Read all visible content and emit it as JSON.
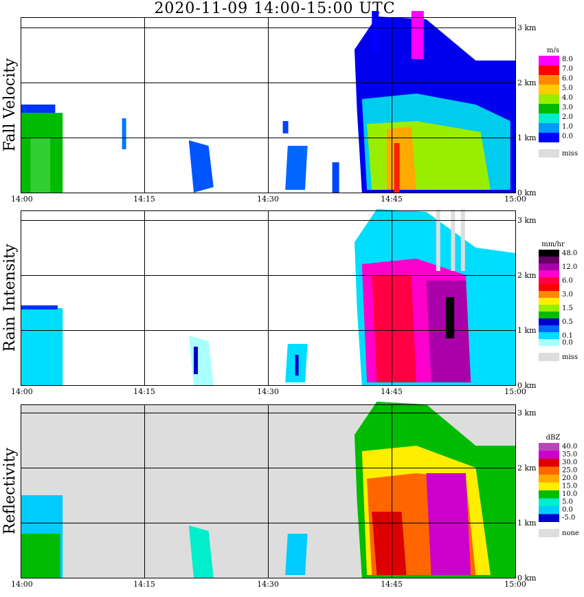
{
  "title": "2020-11-09   14:00-15:00 UTC",
  "chart_data": [
    {
      "type": "heatmap",
      "ylabel": "Fall Velocity",
      "x_ticks": [
        "14:00",
        "14:15",
        "14:30",
        "14:45",
        "15:00"
      ],
      "y_ticks": [
        "0 km",
        "1 km",
        "2 km",
        "3 km"
      ],
      "ylim": [
        0,
        3.3
      ],
      "background": "#ffffff",
      "legend": {
        "unit": "m/s",
        "labels": [
          "8.0",
          "7.0",
          "6.0",
          "5.0",
          "4.0",
          "3.0",
          "2.0",
          "1.0",
          "0.0"
        ],
        "colors": [
          "#ff00ff",
          "#ff0000",
          "#ff8800",
          "#ffcc00",
          "#99ee00",
          "#00bb00",
          "#00eecc",
          "#0099ff",
          "#0000ff"
        ],
        "miss_label": "miss",
        "miss_color": "#dddddd"
      }
    },
    {
      "type": "heatmap",
      "ylabel": "Rain Intensity",
      "x_ticks": [
        "14:00",
        "14:15",
        "14:30",
        "14:45",
        "15:00"
      ],
      "y_ticks": [
        "0 km",
        "1 km",
        "2 km",
        "3 km"
      ],
      "ylim": [
        0,
        3.3
      ],
      "background": "#ffffff",
      "legend": {
        "unit": "mm/hr",
        "labels": [
          "48.0",
          "",
          "12.0",
          "",
          "6.0",
          "",
          "3.0",
          "",
          "1.5",
          "",
          "0.5",
          "",
          "0.1",
          "0.0"
        ],
        "colors": [
          "#000000",
          "#660066",
          "#aa00aa",
          "#ff00cc",
          "#ff0044",
          "#ff0000",
          "#ff8800",
          "#ffee00",
          "#99ee00",
          "#00bb00",
          "#0000cc",
          "#0066ff",
          "#00ddff",
          "#aaffff"
        ],
        "miss_label": "miss",
        "miss_color": "#dddddd"
      }
    },
    {
      "type": "heatmap",
      "ylabel": "Reflectivity",
      "x_ticks": [
        "14:00",
        "14:15",
        "14:30",
        "14:45",
        "15:00"
      ],
      "y_ticks": [
        "0 km",
        "1 km",
        "2 km",
        "3 km"
      ],
      "ylim": [
        0,
        3.3
      ],
      "background": "#dddddd",
      "legend": {
        "unit": "dBZ",
        "labels": [
          "40.0",
          "35.0",
          "30.0",
          "25.0",
          "20.0",
          "15.0",
          "10.0",
          "5.0",
          "0.0",
          "-5.0"
        ],
        "colors": [
          "#bb44bb",
          "#cc00cc",
          "#dd0000",
          "#ff6600",
          "#ffaa00",
          "#ffee00",
          "#00bb00",
          "#00eecc",
          "#00ccff",
          "#0000cc"
        ],
        "miss_label": "none",
        "miss_color": "#dddddd"
      }
    }
  ]
}
